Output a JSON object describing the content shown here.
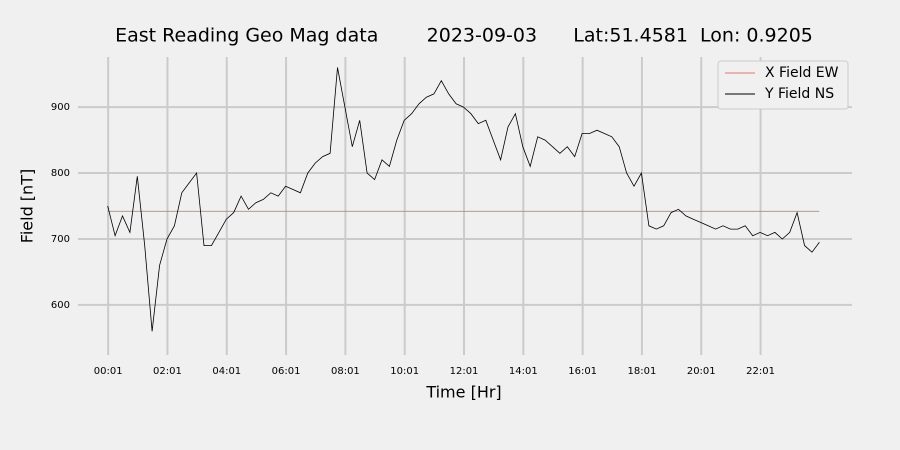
{
  "chart_data": {
    "type": "line",
    "title": "East Reading Geo Mag data        2023-09-03      Lat:51.4581  Lon: 0.9205",
    "xlabel": "Time  [Hr]",
    "ylabel": "Field  [nT]",
    "xlim": [
      -1.0,
      25.1
    ],
    "ylim": [
      524,
      976
    ],
    "xticks": [
      {
        "value": 0.0167,
        "label": "00:01"
      },
      {
        "value": 2.0167,
        "label": "02:01"
      },
      {
        "value": 4.0167,
        "label": "04:01"
      },
      {
        "value": 6.0167,
        "label": "06:01"
      },
      {
        "value": 8.0167,
        "label": "08:01"
      },
      {
        "value": 10.0167,
        "label": "10:01"
      },
      {
        "value": 12.0167,
        "label": "12:01"
      },
      {
        "value": 14.0167,
        "label": "14:01"
      },
      {
        "value": 16.0167,
        "label": "16:01"
      },
      {
        "value": 18.0167,
        "label": "18:01"
      },
      {
        "value": 20.0167,
        "label": "20:01"
      },
      {
        "value": 22.0167,
        "label": "22:01"
      }
    ],
    "yticks": [
      600,
      700,
      800,
      900
    ],
    "grid": true,
    "legend": "upper right",
    "series": [
      {
        "name": "X Field EW",
        "color": "#e8736c",
        "x": [
          0,
          24
        ],
        "values": [
          742,
          742
        ]
      },
      {
        "name": "Y Field NS",
        "color": "#000000",
        "x": [
          0,
          0.25,
          0.5,
          0.75,
          1,
          1.25,
          1.5,
          1.75,
          2,
          2.25,
          2.5,
          2.75,
          3,
          3.25,
          3.5,
          3.75,
          4,
          4.25,
          4.5,
          4.75,
          5,
          5.25,
          5.5,
          5.75,
          6,
          6.25,
          6.5,
          6.75,
          7,
          7.25,
          7.5,
          7.75,
          8,
          8.25,
          8.5,
          8.75,
          9,
          9.25,
          9.5,
          9.75,
          10,
          10.25,
          10.5,
          10.75,
          11,
          11.25,
          11.5,
          11.75,
          12,
          12.25,
          12.5,
          12.75,
          13,
          13.25,
          13.5,
          13.75,
          14,
          14.25,
          14.5,
          14.75,
          15,
          15.25,
          15.5,
          15.75,
          16,
          16.25,
          16.5,
          16.75,
          17,
          17.25,
          17.5,
          17.75,
          18,
          18.25,
          18.5,
          18.75,
          19,
          19.25,
          19.5,
          19.75,
          20,
          20.25,
          20.5,
          20.75,
          21,
          21.25,
          21.5,
          21.75,
          22,
          22.25,
          22.5,
          22.75,
          23,
          23.25,
          23.5,
          23.75,
          24
        ],
        "values": [
          750,
          705,
          735,
          710,
          795,
          690,
          560,
          660,
          700,
          720,
          770,
          785,
          800,
          690,
          690,
          710,
          730,
          740,
          765,
          745,
          755,
          760,
          770,
          765,
          780,
          775,
          770,
          800,
          815,
          825,
          830,
          960,
          900,
          840,
          880,
          800,
          790,
          820,
          810,
          850,
          880,
          890,
          905,
          915,
          920,
          940,
          920,
          905,
          900,
          890,
          875,
          880,
          850,
          820,
          870,
          890,
          840,
          810,
          855,
          850,
          840,
          830,
          840,
          825,
          860,
          860,
          865,
          860,
          855,
          840,
          800,
          780,
          800,
          720,
          715,
          720,
          740,
          745,
          735,
          730,
          725,
          720,
          715,
          720,
          715,
          715,
          720,
          705,
          710,
          705,
          710,
          700,
          710,
          740,
          690,
          680,
          695
        ]
      }
    ]
  }
}
